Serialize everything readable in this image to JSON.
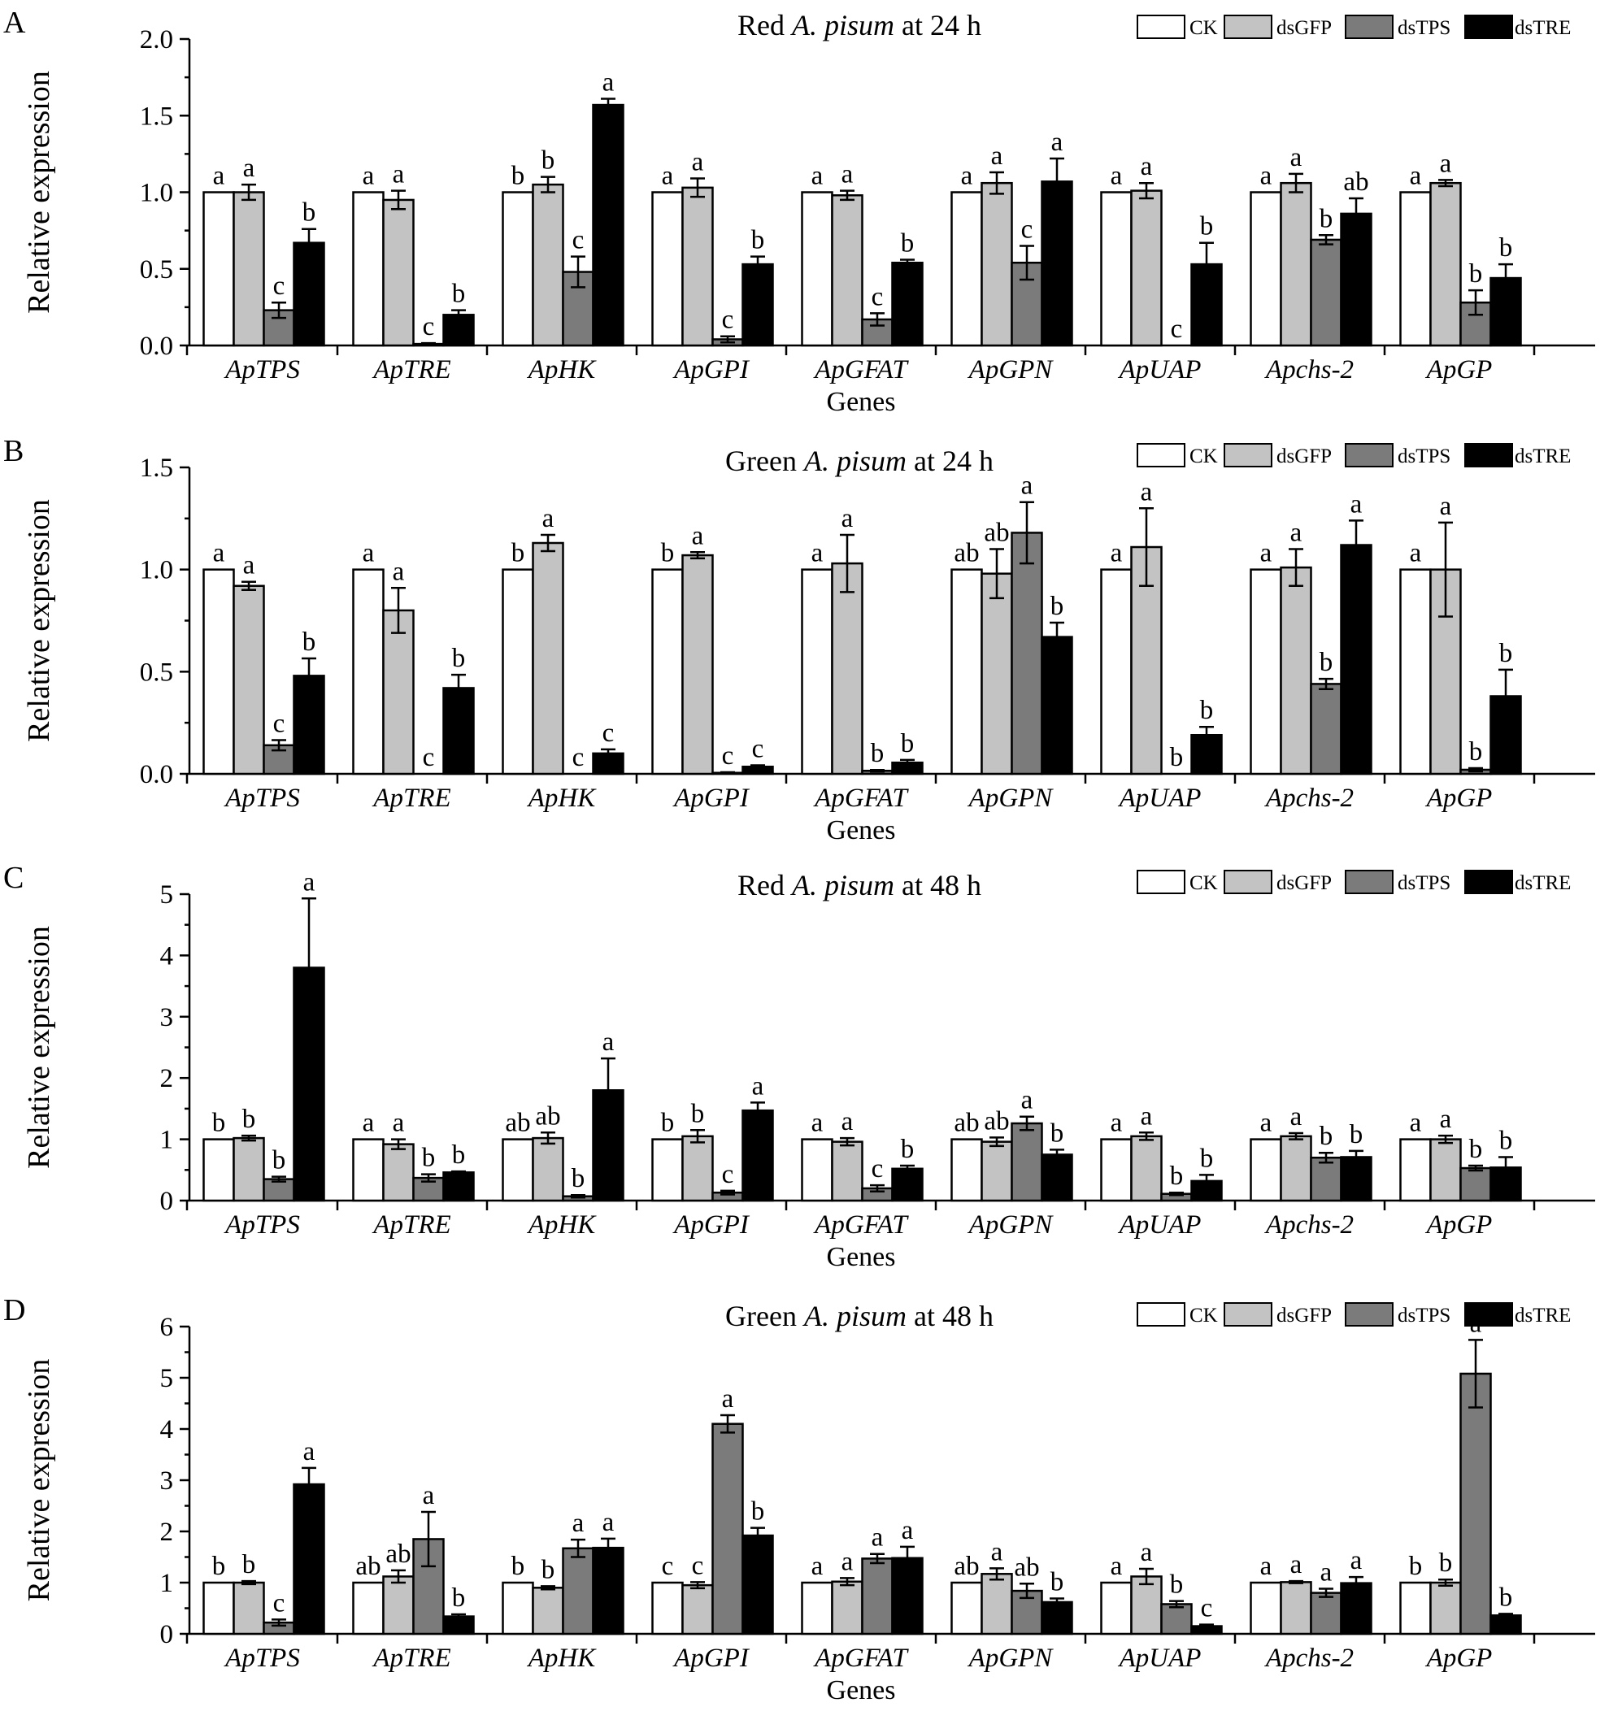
{
  "legend": {
    "items": [
      {
        "label": "CK",
        "color": "#ffffff"
      },
      {
        "label": "dsGFP",
        "color": "#c3c3c3"
      },
      {
        "label": "dsTPS",
        "color": "#7b7b7b"
      },
      {
        "label": "dsTRE",
        "color": "#000000"
      }
    ]
  },
  "chart_data": [
    {
      "type": "bar",
      "panel": "A",
      "title": {
        "pre": "Red ",
        "species": "A. pisum",
        "post": " at 24 h"
      },
      "xlabel": "Genes",
      "ylabel": "Relative expression",
      "ylim": [
        0,
        2.0
      ],
      "yticks": [
        "0.0",
        "0.5",
        "1.0",
        "1.5",
        "2.0"
      ],
      "ytick_values": [
        0,
        0.5,
        1.0,
        1.5,
        2.0
      ],
      "categories": [
        "ApTPS",
        "ApTRE",
        "ApHK",
        "ApGPI",
        "ApGFAT",
        "ApGPN",
        "ApUAP",
        "Apchs-2",
        "ApGP"
      ],
      "series": [
        {
          "name": "CK",
          "values": [
            1.0,
            1.0,
            1.0,
            1.0,
            1.0,
            1.0,
            1.0,
            1.0,
            1.0
          ],
          "errors": [
            0,
            0,
            0,
            0,
            0,
            0,
            0,
            0,
            0
          ],
          "letters": [
            "a",
            "a",
            "b",
            "a",
            "a",
            "a",
            "a",
            "a",
            "a"
          ]
        },
        {
          "name": "dsGFP",
          "values": [
            1.0,
            0.95,
            1.05,
            1.03,
            0.98,
            1.06,
            1.01,
            1.06,
            1.06
          ],
          "errors": [
            0.05,
            0.06,
            0.05,
            0.06,
            0.03,
            0.07,
            0.05,
            0.06,
            0.02
          ],
          "letters": [
            "a",
            "a",
            "b",
            "a",
            "a",
            "a",
            "a",
            "a",
            "a"
          ]
        },
        {
          "name": "dsTPS",
          "values": [
            0.23,
            0.01,
            0.48,
            0.04,
            0.17,
            0.54,
            0.0,
            0.69,
            0.28
          ],
          "errors": [
            0.05,
            0.005,
            0.1,
            0.02,
            0.04,
            0.11,
            0.0,
            0.03,
            0.08
          ],
          "letters": [
            "c",
            "c",
            "c",
            "c",
            "c",
            "c",
            "c",
            "b",
            "b"
          ]
        },
        {
          "name": "dsTRE",
          "values": [
            0.67,
            0.2,
            1.57,
            0.53,
            0.54,
            1.07,
            0.53,
            0.86,
            0.44
          ],
          "errors": [
            0.09,
            0.03,
            0.04,
            0.05,
            0.02,
            0.15,
            0.14,
            0.1,
            0.09
          ],
          "letters": [
            "b",
            "b",
            "a",
            "b",
            "b",
            "a",
            "b",
            "ab",
            "b"
          ]
        }
      ]
    },
    {
      "type": "bar",
      "panel": "B",
      "title": {
        "pre": "Green ",
        "species": "A. pisum",
        "post": " at 24 h"
      },
      "xlabel": "Genes",
      "ylabel": "Relative expression",
      "ylim": [
        0,
        1.5
      ],
      "yticks": [
        "0.0",
        "0.5",
        "1.0",
        "1.5"
      ],
      "ytick_values": [
        0,
        0.5,
        1.0,
        1.5
      ],
      "categories": [
        "ApTPS",
        "ApTRE",
        "ApHK",
        "ApGPI",
        "ApGFAT",
        "ApGPN",
        "ApUAP",
        "Apchs-2",
        "ApGP"
      ],
      "series": [
        {
          "name": "CK",
          "values": [
            1.0,
            1.0,
            1.0,
            1.0,
            1.0,
            1.0,
            1.0,
            1.0,
            1.0
          ],
          "errors": [
            0,
            0,
            0,
            0,
            0,
            0,
            0,
            0,
            0
          ],
          "letters": [
            "a",
            "a",
            "b",
            "b",
            "a",
            "ab",
            "a",
            "a",
            "a"
          ]
        },
        {
          "name": "dsGFP",
          "values": [
            0.92,
            0.8,
            1.13,
            1.07,
            1.03,
            0.98,
            1.11,
            1.01,
            1.0
          ],
          "errors": [
            0.02,
            0.11,
            0.04,
            0.015,
            0.14,
            0.12,
            0.19,
            0.09,
            0.23
          ],
          "letters": [
            "a",
            "a",
            "a",
            "a",
            "a",
            "ab",
            "a",
            "a",
            "a"
          ]
        },
        {
          "name": "dsTPS",
          "values": [
            0.14,
            0.0,
            0.0,
            0.005,
            0.015,
            1.18,
            0.0,
            0.44,
            0.02
          ],
          "errors": [
            0.025,
            0.0,
            0.0,
            0.003,
            0.004,
            0.15,
            0.0,
            0.025,
            0.008
          ],
          "letters": [
            "c",
            "c",
            "c",
            "c",
            "b",
            "a",
            "b",
            "b",
            "b"
          ]
        },
        {
          "name": "dsTRE",
          "values": [
            0.48,
            0.42,
            0.1,
            0.035,
            0.055,
            0.67,
            0.19,
            1.12,
            0.38
          ],
          "errors": [
            0.085,
            0.065,
            0.02,
            0.007,
            0.013,
            0.07,
            0.04,
            0.12,
            0.13
          ],
          "letters": [
            "b",
            "b",
            "c",
            "c",
            "b",
            "b",
            "b",
            "a",
            "b"
          ]
        }
      ]
    },
    {
      "type": "bar",
      "panel": "C",
      "title": {
        "pre": "Red ",
        "species": "A. pisum",
        "post": " at 48 h"
      },
      "xlabel": "Genes",
      "ylabel": "Relative expression",
      "ylim": [
        0,
        5
      ],
      "yticks": [
        "0",
        "1",
        "2",
        "3",
        "4",
        "5"
      ],
      "ytick_values": [
        0,
        1,
        2,
        3,
        4,
        5
      ],
      "categories": [
        "ApTPS",
        "ApTRE",
        "ApHK",
        "ApGPI",
        "ApGFAT",
        "ApGPN",
        "ApUAP",
        "Apchs-2",
        "ApGP"
      ],
      "series": [
        {
          "name": "CK",
          "values": [
            1.0,
            1.0,
            1.0,
            1.0,
            1.0,
            1.0,
            1.0,
            1.0,
            1.0
          ],
          "errors": [
            0,
            0,
            0,
            0,
            0,
            0,
            0,
            0,
            0
          ],
          "letters": [
            "b",
            "a",
            "ab",
            "b",
            "a",
            "ab",
            "a",
            "a",
            "a"
          ]
        },
        {
          "name": "dsGFP",
          "values": [
            1.02,
            0.92,
            1.02,
            1.05,
            0.96,
            0.96,
            1.05,
            1.05,
            1.0
          ],
          "errors": [
            0.04,
            0.08,
            0.09,
            0.1,
            0.06,
            0.07,
            0.06,
            0.05,
            0.06
          ],
          "letters": [
            "b",
            "a",
            "ab",
            "b",
            "a",
            "ab",
            "a",
            "a",
            "a"
          ]
        },
        {
          "name": "dsTPS",
          "values": [
            0.35,
            0.37,
            0.07,
            0.13,
            0.2,
            1.26,
            0.11,
            0.7,
            0.53
          ],
          "errors": [
            0.04,
            0.06,
            0.02,
            0.03,
            0.05,
            0.11,
            0.02,
            0.08,
            0.04
          ],
          "letters": [
            "b",
            "b",
            "b",
            "c",
            "c",
            "a",
            "b",
            "b",
            "b"
          ]
        },
        {
          "name": "dsTRE",
          "values": [
            3.8,
            0.46,
            1.8,
            1.47,
            0.52,
            0.75,
            0.32,
            0.71,
            0.54
          ],
          "errors": [
            1.13,
            0.015,
            0.52,
            0.13,
            0.05,
            0.08,
            0.1,
            0.1,
            0.17
          ],
          "letters": [
            "a",
            "b",
            "a",
            "a",
            "b",
            "b",
            "b",
            "b",
            "b"
          ]
        }
      ]
    },
    {
      "type": "bar",
      "panel": "D",
      "title": {
        "pre": "Green ",
        "species": "A. pisum",
        "post": " at 48 h"
      },
      "xlabel": "Genes",
      "ylabel": "Relative expression",
      "ylim": [
        0,
        6
      ],
      "yticks": [
        "0",
        "1",
        "2",
        "3",
        "4",
        "5",
        "6"
      ],
      "ytick_values": [
        0,
        1,
        2,
        3,
        4,
        5,
        6
      ],
      "categories": [
        "ApTPS",
        "ApTRE",
        "ApHK",
        "ApGPI",
        "ApGFAT",
        "ApGPN",
        "ApUAP",
        "Apchs-2",
        "ApGP"
      ],
      "series": [
        {
          "name": "CK",
          "values": [
            1.0,
            1.0,
            1.0,
            1.0,
            1.0,
            1.0,
            1.0,
            1.0,
            1.0
          ],
          "errors": [
            0,
            0,
            0,
            0,
            0,
            0,
            0,
            0,
            0
          ],
          "letters": [
            "b",
            "ab",
            "b",
            "c",
            "a",
            "ab",
            "a",
            "a",
            "b"
          ]
        },
        {
          "name": "dsGFP",
          "values": [
            1.0,
            1.12,
            0.9,
            0.95,
            1.02,
            1.17,
            1.12,
            1.01,
            1.0
          ],
          "errors": [
            0.03,
            0.12,
            0.03,
            0.06,
            0.07,
            0.11,
            0.15,
            0.02,
            0.06
          ],
          "letters": [
            "b",
            "ab",
            "b",
            "c",
            "a",
            "a",
            "a",
            "a",
            "b"
          ]
        },
        {
          "name": "dsTPS",
          "values": [
            0.22,
            1.85,
            1.67,
            4.1,
            1.47,
            0.84,
            0.58,
            0.8,
            5.08
          ],
          "errors": [
            0.06,
            0.53,
            0.17,
            0.17,
            0.09,
            0.14,
            0.06,
            0.08,
            0.66
          ],
          "letters": [
            "c",
            "a",
            "a",
            "a",
            "a",
            "ab",
            "b",
            "a",
            "a"
          ]
        },
        {
          "name": "dsTRE",
          "values": [
            2.92,
            0.34,
            1.68,
            1.92,
            1.48,
            0.62,
            0.15,
            0.99,
            0.36
          ],
          "errors": [
            0.32,
            0.04,
            0.18,
            0.15,
            0.22,
            0.07,
            0.03,
            0.12,
            0.03
          ],
          "letters": [
            "a",
            "b",
            "a",
            "b",
            "a",
            "b",
            "c",
            "a",
            "b"
          ]
        }
      ]
    }
  ]
}
